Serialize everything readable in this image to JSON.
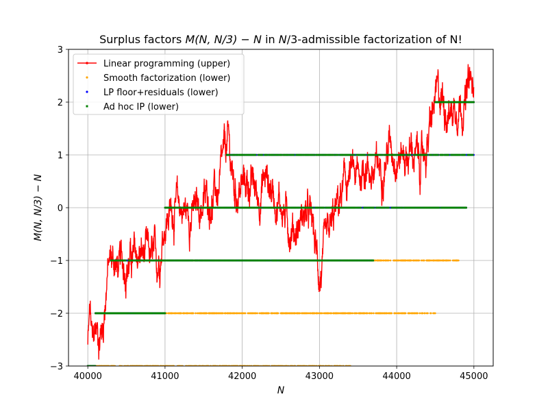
{
  "chart_data": {
    "type": "scatter",
    "title": "Surplus factors M(N, N/3) − N in N/3-admissible factorization of N!",
    "title_parts": {
      "pre": "Surplus factors ",
      "math": "M(N, N/3) − N",
      "mid": " in ",
      "math2": "N",
      "post": "/3-admissible factorization of N!"
    },
    "xlabel": "N",
    "ylabel": "M(N, N/3) − N",
    "xlim": [
      39750,
      45250
    ],
    "ylim": [
      -3,
      3
    ],
    "xticks": [
      40000,
      41000,
      42000,
      43000,
      44000,
      45000
    ],
    "yticks": [
      -3,
      -2,
      -1,
      0,
      1,
      2,
      3
    ],
    "grid": true,
    "legend_position": "upper-left",
    "series": [
      {
        "name": "Linear programming (upper)",
        "color": "#ff0000",
        "marker": "line-dot",
        "trend_points": [
          [
            40000,
            -2.6
          ],
          [
            40030,
            -2.0
          ],
          [
            40060,
            -2.7
          ],
          [
            40100,
            -2.3
          ],
          [
            40150,
            -2.4
          ],
          [
            40200,
            -2.2
          ],
          [
            40250,
            -1.2
          ],
          [
            40300,
            -1.0
          ],
          [
            40350,
            -1.0
          ],
          [
            40400,
            -1.2
          ],
          [
            40500,
            -1.0
          ],
          [
            40600,
            -1.0
          ],
          [
            40700,
            -0.9
          ],
          [
            40800,
            -1.0
          ],
          [
            40900,
            -1.1
          ],
          [
            41000,
            -0.2
          ],
          [
            41100,
            0.0
          ],
          [
            41200,
            0.0
          ],
          [
            41300,
            -0.1
          ],
          [
            41400,
            -0.1
          ],
          [
            41500,
            0.1
          ],
          [
            41600,
            0.2
          ],
          [
            41700,
            0.3
          ],
          [
            41780,
            1.0
          ],
          [
            41820,
            1.2
          ],
          [
            41900,
            0.3
          ],
          [
            42000,
            0.4
          ],
          [
            42100,
            0.5
          ],
          [
            42200,
            0.2
          ],
          [
            42300,
            0.6
          ],
          [
            42400,
            0.3
          ],
          [
            42500,
            0.1
          ],
          [
            42600,
            -0.3
          ],
          [
            42700,
            -0.4
          ],
          [
            42800,
            -0.1
          ],
          [
            42900,
            -0.3
          ],
          [
            43000,
            -1.3
          ],
          [
            43100,
            -0.8
          ],
          [
            43200,
            -0.2
          ],
          [
            43300,
            0.3
          ],
          [
            43400,
            0.6
          ],
          [
            43500,
            0.5
          ],
          [
            43600,
            0.9
          ],
          [
            43700,
            0.6
          ],
          [
            43800,
            0.8
          ],
          [
            43900,
            1.2
          ],
          [
            44000,
            1.1
          ],
          [
            44100,
            1.0
          ],
          [
            44200,
            1.1
          ],
          [
            44300,
            0.8
          ],
          [
            44400,
            1.2
          ],
          [
            44500,
            2.0
          ],
          [
            44600,
            2.1
          ],
          [
            44700,
            1.8
          ],
          [
            44800,
            2.1
          ],
          [
            44900,
            2.0
          ],
          [
            44950,
            2.4
          ],
          [
            44990,
            2.1
          ]
        ],
        "amplitude": 0.35
      },
      {
        "name": "Smooth factorization (lower)",
        "color": "#ffa500",
        "marker": "dot",
        "bands": [
          {
            "y": -3,
            "x_range": [
              40100,
              43400
            ],
            "density": 0.55
          },
          {
            "y": -2,
            "x_range": [
              40100,
              44500
            ],
            "density": 0.6
          },
          {
            "y": -1,
            "x_range": [
              40300,
              44800
            ],
            "density": 0.6
          },
          {
            "y": 0,
            "x_range": [
              41000,
              44900
            ],
            "density": 0.6
          },
          {
            "y": 1,
            "x_range": [
              41800,
              45000
            ],
            "density": 0.5
          },
          {
            "y": 2,
            "x_range": [
              44500,
              45000
            ],
            "density": 0.5
          }
        ]
      },
      {
        "name": "LP floor+residuals (lower)",
        "color": "#0000ff",
        "marker": "dot",
        "bands": [
          {
            "y": -3,
            "x_range": [
              40000,
              40100
            ],
            "density": 0.9
          },
          {
            "y": -2,
            "x_range": [
              40100,
              41000
            ],
            "density": 0.9
          },
          {
            "y": -1,
            "x_range": [
              40300,
              43700
            ],
            "density": 0.8
          },
          {
            "y": 0,
            "x_range": [
              41000,
              44900
            ],
            "density": 0.75
          },
          {
            "y": 1,
            "x_range": [
              41800,
              45000
            ],
            "density": 0.6
          },
          {
            "y": 2,
            "x_range": [
              44500,
              45000
            ],
            "density": 0.9
          }
        ]
      },
      {
        "name": "Ad hoc IP (lower)",
        "color": "#008000",
        "marker": "square",
        "bands": [
          {
            "y": -3,
            "x_range": [
              40000,
              40100
            ],
            "density": 0.9
          },
          {
            "y": -2,
            "x_range": [
              40100,
              41000
            ],
            "density": 0.9
          },
          {
            "y": -1,
            "x_range": [
              40300,
              43700
            ],
            "density": 0.75
          },
          {
            "y": 0,
            "x_range": [
              41000,
              44900
            ],
            "density": 0.7
          },
          {
            "y": 1,
            "x_range": [
              41800,
              45000
            ],
            "density": 0.55
          },
          {
            "y": 2,
            "x_range": [
              44500,
              45000
            ],
            "density": 0.85
          }
        ]
      }
    ]
  }
}
